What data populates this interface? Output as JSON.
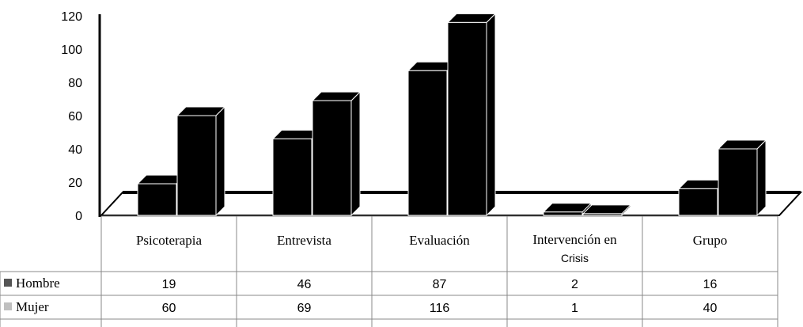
{
  "chart_data": {
    "type": "bar",
    "categories": [
      "Psicoterapia",
      "Entrevista",
      "Evaluación",
      "Intervención en Crisis",
      "Grupo"
    ],
    "category_lines": [
      [
        "Psicoterapia"
      ],
      [
        "Entrevista"
      ],
      [
        "Evaluación"
      ],
      [
        "Intervención en",
        "Crisis"
      ],
      [
        "Grupo"
      ]
    ],
    "series": [
      {
        "name": "Hombre",
        "values": [
          19,
          46,
          87,
          2,
          16
        ],
        "labels": [
          "19",
          "46",
          "87",
          "2",
          "16"
        ],
        "color": "#555555"
      },
      {
        "name": "Mujer",
        "values": [
          60,
          69,
          116,
          1,
          40
        ],
        "labels": [
          "60",
          "69",
          "116",
          "1",
          "40"
        ],
        "color": "#c0c0c0"
      }
    ],
    "yticks": [
      "0",
      "20",
      "40",
      "60",
      "80",
      "100",
      "120"
    ],
    "ylim": [
      0,
      120
    ],
    "bar_color": "#000000",
    "data_table": true,
    "grid": false
  }
}
